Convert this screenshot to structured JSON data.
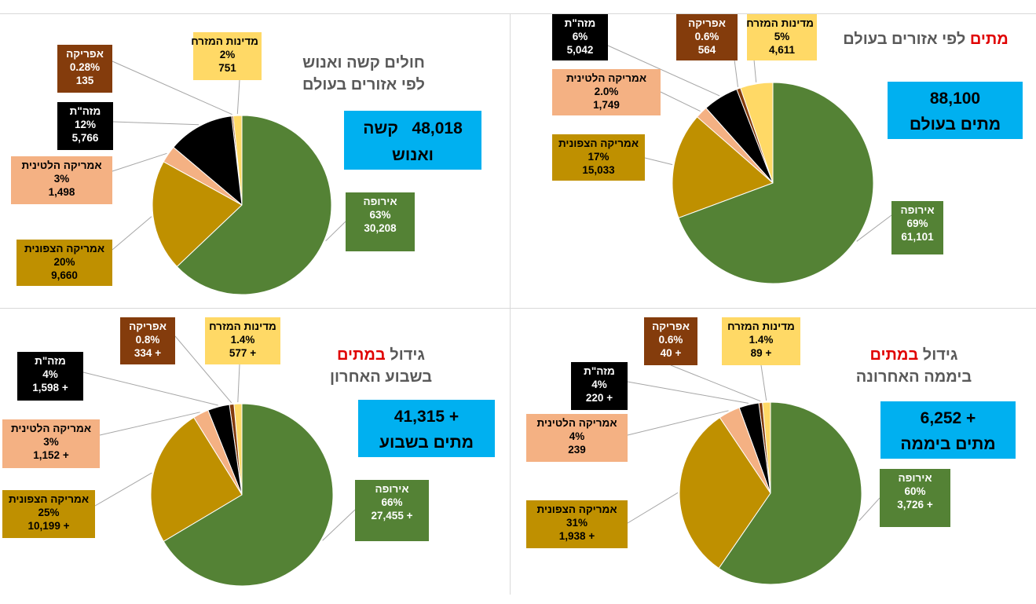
{
  "chart_data": [
    {
      "type": "pie",
      "title": [
        "<r>מתים</r> לפי אזורים בעולם"
      ],
      "total": {
        "lines": [
          "88,100",
          "מתים בעולם"
        ]
      },
      "slices": [
        {
          "name": "מדינות המזרח",
          "percent": "5%",
          "value": "4,611",
          "v": 4611,
          "color": "#ffd966",
          "text_color": "#000000"
        },
        {
          "name": "אפריקה",
          "percent": "0.6%",
          "value": "564",
          "v": 564,
          "color": "#843c0c",
          "text_color": "#ffffff"
        },
        {
          "name": "מזה\"ת",
          "percent": "6%",
          "value": "5,042",
          "v": 5042,
          "color": "#000000",
          "text_color": "#ffffff"
        },
        {
          "name": "אמריקה הלטינית",
          "percent": "2.0%",
          "value": "1,749",
          "v": 1749,
          "color": "#f4b183",
          "text_color": "#000000"
        },
        {
          "name": "אמריקה הצפונית",
          "percent": "17%",
          "value": "15,033",
          "v": 15033,
          "color": "#bf9000",
          "text_color": "#000000"
        },
        {
          "name": "אירופה",
          "percent": "69%",
          "value": "61,101",
          "v": 61101,
          "color": "#548235",
          "text_color": "#ffffff"
        }
      ]
    },
    {
      "type": "pie",
      "title": [
        "חולים קשה ואנוש",
        "לפי אזורים בעולם"
      ],
      "total": {
        "lines": [
          "48,018   קשה",
          "ואנוש"
        ]
      },
      "slices": [
        {
          "name": "מדינות המזרח",
          "percent": "2%",
          "value": "751",
          "v": 751,
          "color": "#ffd966",
          "text_color": "#000000"
        },
        {
          "name": "אפריקה",
          "percent": "0.28%",
          "value": "135",
          "v": 135,
          "color": "#843c0c",
          "text_color": "#ffffff"
        },
        {
          "name": "מזה\"ת",
          "percent": "12%",
          "value": "5,766",
          "v": 5766,
          "color": "#000000",
          "text_color": "#ffffff"
        },
        {
          "name": "אמריקה הלטינית",
          "percent": "3%",
          "value": "1,498",
          "v": 1498,
          "color": "#f4b183",
          "text_color": "#000000"
        },
        {
          "name": "אמריקה הצפונית",
          "percent": "20%",
          "value": "9,660",
          "v": 9660,
          "color": "#bf9000",
          "text_color": "#000000"
        },
        {
          "name": "אירופה",
          "percent": "63%",
          "value": "30,208",
          "v": 30208,
          "color": "#548235",
          "text_color": "#ffffff"
        }
      ]
    },
    {
      "type": "pie",
      "title": [
        "גידול <r>במתים</r>",
        "ביממה האחרונה"
      ],
      "total": {
        "lines": [
          "+ 6,252",
          "מתים ביממה"
        ]
      },
      "slices": [
        {
          "name": "מדינות המזרח",
          "percent": "1.4%",
          "value": "+ 89",
          "v": 89,
          "color": "#ffd966",
          "text_color": "#000000"
        },
        {
          "name": "אפריקה",
          "percent": "0.6%",
          "value": "+ 40",
          "v": 40,
          "color": "#843c0c",
          "text_color": "#ffffff"
        },
        {
          "name": "מזה\"ת",
          "percent": "4%",
          "value": "+ 220",
          "v": 220,
          "color": "#000000",
          "text_color": "#ffffff"
        },
        {
          "name": "אמריקה הלטינית",
          "percent": "4%",
          "value": "239",
          "v": 239,
          "color": "#f4b183",
          "text_color": "#000000"
        },
        {
          "name": "אמריקה הצפונית",
          "percent": "31%",
          "value": "+ 1,938",
          "v": 1938,
          "color": "#bf9000",
          "text_color": "#000000"
        },
        {
          "name": "אירופה",
          "percent": "60%",
          "value": "+ 3,726",
          "v": 3726,
          "color": "#548235",
          "text_color": "#ffffff"
        }
      ]
    },
    {
      "type": "pie",
      "title": [
        "גידול <r>במתים</r>",
        "בשבוע האחרון"
      ],
      "total": {
        "lines": [
          "+ 41,315",
          "מתים בשבוע"
        ]
      },
      "slices": [
        {
          "name": "מדינות המזרח",
          "percent": "1.4%",
          "value": "+ 577",
          "v": 577,
          "color": "#ffd966",
          "text_color": "#000000"
        },
        {
          "name": "אפריקה",
          "percent": "0.8%",
          "value": "+ 334",
          "v": 334,
          "color": "#843c0c",
          "text_color": "#ffffff"
        },
        {
          "name": "מזה\"ת",
          "percent": "4%",
          "value": "+ 1,598",
          "v": 1598,
          "color": "#000000",
          "text_color": "#ffffff"
        },
        {
          "name": "אמריקה הלטינית",
          "percent": "3%",
          "value": "+ 1,152",
          "v": 1152,
          "color": "#f4b183",
          "text_color": "#000000"
        },
        {
          "name": "אמריקה הצפונית",
          "percent": "25%",
          "value": "+ 10,199",
          "v": 10199,
          "color": "#bf9000",
          "text_color": "#000000"
        },
        {
          "name": "אירופה",
          "percent": "66%",
          "value": "+ 27,455",
          "v": 27455,
          "color": "#548235",
          "text_color": "#ffffff"
        }
      ]
    }
  ]
}
